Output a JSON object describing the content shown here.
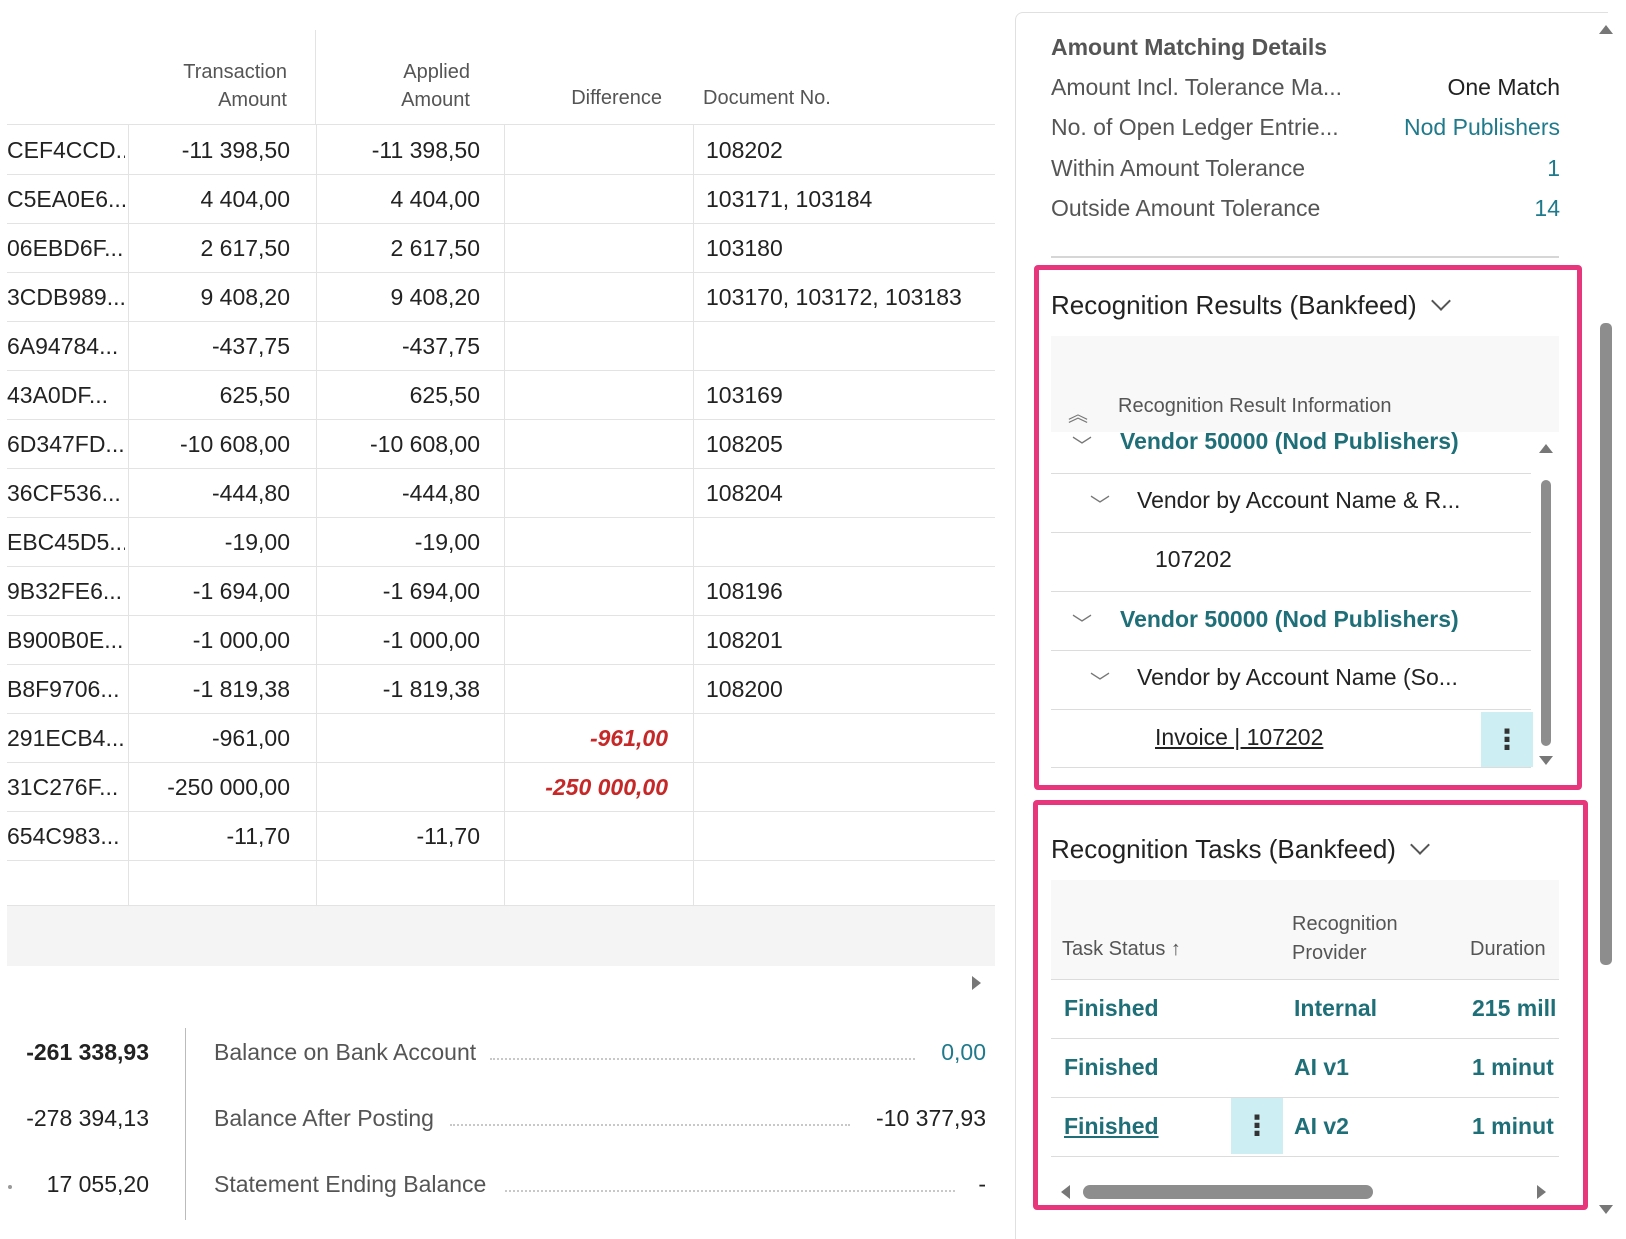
{
  "grid": {
    "headers": {
      "transaction_amount": [
        "Transaction",
        "Amount"
      ],
      "applied_amount": [
        "Applied",
        "Amount"
      ],
      "difference": "Difference",
      "document_no": "Document No."
    },
    "rows": [
      {
        "id": "CEF4CCD...",
        "transaction": "-11 398,50",
        "applied": "-11 398,50",
        "difference": "",
        "document": "108202"
      },
      {
        "id": "C5EA0E6...",
        "transaction": "4 404,00",
        "applied": "4 404,00",
        "difference": "",
        "document": "103171, 103184"
      },
      {
        "id": "06EBD6F...",
        "transaction": "2 617,50",
        "applied": "2 617,50",
        "difference": "",
        "document": "103180"
      },
      {
        "id": "3CDB989...",
        "transaction": "9 408,20",
        "applied": "9 408,20",
        "difference": "",
        "document": "103170, 103172, 103183"
      },
      {
        "id": "6A94784...",
        "transaction": "-437,75",
        "applied": "-437,75",
        "difference": "",
        "document": ""
      },
      {
        "id": "43A0DF...",
        "transaction": "625,50",
        "applied": "625,50",
        "difference": "",
        "document": "103169"
      },
      {
        "id": "6D347FD...",
        "transaction": "-10 608,00",
        "applied": "-10 608,00",
        "difference": "",
        "document": "108205"
      },
      {
        "id": "36CF536...",
        "transaction": "-444,80",
        "applied": "-444,80",
        "difference": "",
        "document": "108204"
      },
      {
        "id": "EBC45D5...",
        "transaction": "-19,00",
        "applied": "-19,00",
        "difference": "",
        "document": ""
      },
      {
        "id": "9B32FE6...",
        "transaction": "-1 694,00",
        "applied": "-1 694,00",
        "difference": "",
        "document": "108196"
      },
      {
        "id": "B900B0E...",
        "transaction": "-1 000,00",
        "applied": "-1 000,00",
        "difference": "",
        "document": "108201"
      },
      {
        "id": "B8F9706...",
        "transaction": "-1 819,38",
        "applied": "-1 819,38",
        "difference": "",
        "document": "108200"
      },
      {
        "id": "291ECB4...",
        "transaction": "-961,00",
        "applied": "",
        "difference": "-961,00",
        "document": ""
      },
      {
        "id": "31C276F...",
        "transaction": "-250 000,00",
        "applied": "",
        "difference": "-250 000,00",
        "document": ""
      },
      {
        "id": "654C983...",
        "transaction": "-11,70",
        "applied": "-11,70",
        "difference": "",
        "document": ""
      }
    ]
  },
  "totals": {
    "left_values": [
      "-261 338,93",
      "-278 394,13",
      "17 055,20"
    ],
    "balance_on_bank_account": {
      "label": "Balance on Bank Account",
      "value": "0,00"
    },
    "balance_after_posting": {
      "label": "Balance After Posting",
      "value": "-10 377,93"
    },
    "statement_ending_balance": {
      "label": "Statement Ending Balance",
      "value": "-"
    }
  },
  "amount_matching": {
    "title": "Amount Matching Details",
    "rows": [
      {
        "label": "Amount Incl. Tolerance Ma...",
        "value": "One Match"
      },
      {
        "label": "No. of Open Ledger Entrie...",
        "value": "Nod Publishers"
      },
      {
        "label": "Within Amount Tolerance",
        "value": "1"
      },
      {
        "label": "Outside Amount Tolerance",
        "value": "14"
      }
    ]
  },
  "recognition_results": {
    "title": "Recognition Results (Bankfeed)",
    "column_header": "Recognition Result Information",
    "items": [
      {
        "text": "Vendor 50000 (Nod Publishers)"
      },
      {
        "text": "Vendor by Account Name & R..."
      },
      {
        "text": "107202"
      },
      {
        "text": "Vendor 50000 (Nod Publishers)"
      },
      {
        "text": "Vendor by Account Name (So..."
      },
      {
        "text": "Invoice | 107202"
      }
    ]
  },
  "recognition_tasks": {
    "title": "Recognition Tasks (Bankfeed)",
    "headers": {
      "task_status": "Task Status ↑",
      "provider": [
        "Recognition",
        "Provider"
      ],
      "duration": "Duration"
    },
    "rows": [
      {
        "status": "Finished",
        "provider": "Internal",
        "duration": "215 mill"
      },
      {
        "status": "Finished",
        "provider": "AI v1",
        "duration": "1 minut"
      },
      {
        "status": "Finished",
        "provider": "AI v2",
        "duration": "1 minut"
      }
    ]
  },
  "colors": {
    "highlight": "#e8367c",
    "teal": "#1f6f78",
    "negative": "#c62828"
  }
}
